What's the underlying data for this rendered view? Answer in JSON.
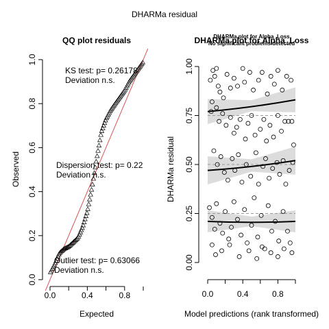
{
  "figure": {
    "main_title": "DHARMa residual"
  },
  "chart_data": [
    {
      "type": "scatter",
      "subtype": "qq",
      "title": "QQ plot residuals",
      "xlabel": "Expected",
      "ylabel": "Observed",
      "xlim": [
        0,
        1
      ],
      "ylim": [
        0,
        1
      ],
      "xticks": [
        "0.0",
        "0.4",
        "0.8"
      ],
      "xtick_values": [
        0,
        0.4,
        0.8
      ],
      "yticks": [
        "0.0",
        "0.2",
        "0.4",
        "0.6",
        "0.8",
        "1.0"
      ],
      "ytick_values": [
        0,
        0.2,
        0.4,
        0.6,
        0.8,
        1.0
      ],
      "reference_line": {
        "from": [
          0,
          0
        ],
        "to": [
          1,
          1
        ],
        "color": "#d9534f"
      },
      "marker": "triangle-open",
      "n_points": 100,
      "qq_curve": [
        [
          0.0,
          0.03
        ],
        [
          0.05,
          0.07
        ],
        [
          0.1,
          0.12
        ],
        [
          0.15,
          0.14
        ],
        [
          0.2,
          0.15
        ],
        [
          0.25,
          0.17
        ],
        [
          0.3,
          0.19
        ],
        [
          0.35,
          0.24
        ],
        [
          0.4,
          0.31
        ],
        [
          0.45,
          0.42
        ],
        [
          0.5,
          0.55
        ],
        [
          0.55,
          0.67
        ],
        [
          0.6,
          0.73
        ],
        [
          0.65,
          0.77
        ],
        [
          0.7,
          0.8
        ],
        [
          0.75,
          0.83
        ],
        [
          0.8,
          0.86
        ],
        [
          0.85,
          0.9
        ],
        [
          0.9,
          0.93
        ],
        [
          0.95,
          0.96
        ],
        [
          1.0,
          0.99
        ]
      ],
      "annotations": [
        {
          "line1": "KS test: p= 0.26178",
          "line2": "Deviation  n.s."
        },
        {
          "line1": "Dispersion test: p= 0.22",
          "line2": "Deviation  n.s."
        },
        {
          "line1": "Outlier test: p= 0.63066",
          "line2": "Deviation  n.s."
        }
      ]
    },
    {
      "type": "scatter",
      "subtype": "residual-vs-predicted",
      "title": "DHARMa plot for Alpha_Loss",
      "subtitle_lines": [
        "DHARMa plot for Alpha_Loss",
        "No significant problems detected"
      ],
      "xlabel": "Model predictions (rank transformed)",
      "ylabel": "DHARMa residual",
      "xlim": [
        0,
        1
      ],
      "ylim": [
        0,
        1
      ],
      "xticks": [
        "0.0",
        "0.4",
        "0.8"
      ],
      "xtick_values": [
        0,
        0.4,
        0.8
      ],
      "yticks": [
        "0.00",
        "0.25",
        "0.50",
        "0.75",
        "1.00"
      ],
      "ytick_values": [
        0,
        0.25,
        0.5,
        0.75,
        1.0
      ],
      "reference_lines_y": [
        0.25,
        0.5,
        0.75
      ],
      "marker": "circle-open",
      "quantile_fits": [
        {
          "quantile": 0.25,
          "start": 0.21,
          "end": 0.21
        },
        {
          "quantile": 0.5,
          "start": 0.47,
          "end": 0.52
        },
        {
          "quantile": 0.75,
          "start": 0.77,
          "end": 0.83
        }
      ],
      "points": [
        [
          0.03,
          0.93
        ],
        [
          0.05,
          0.82
        ],
        [
          0.06,
          0.98
        ],
        [
          0.08,
          0.95
        ],
        [
          0.1,
          0.99
        ],
        [
          0.12,
          0.9
        ],
        [
          0.14,
          0.87
        ],
        [
          0.18,
          0.84
        ],
        [
          0.22,
          0.96
        ],
        [
          0.26,
          0.89
        ],
        [
          0.3,
          0.94
        ],
        [
          0.34,
          0.9
        ],
        [
          0.4,
          0.99
        ],
        [
          0.42,
          0.92
        ],
        [
          0.48,
          0.97
        ],
        [
          0.52,
          0.88
        ],
        [
          0.58,
          0.93
        ],
        [
          0.62,
          0.97
        ],
        [
          0.68,
          0.86
        ],
        [
          0.72,
          0.95
        ],
        [
          0.76,
          0.91
        ],
        [
          0.8,
          0.98
        ],
        [
          0.85,
          0.88
        ],
        [
          0.9,
          0.95
        ],
        [
          0.95,
          0.93
        ],
        [
          0.04,
          0.77
        ],
        [
          0.1,
          0.79
        ],
        [
          0.13,
          0.72
        ],
        [
          0.17,
          0.76
        ],
        [
          0.21,
          0.7
        ],
        [
          0.26,
          0.74
        ],
        [
          0.3,
          0.66
        ],
        [
          0.33,
          0.69
        ],
        [
          0.37,
          0.73
        ],
        [
          0.43,
          0.63
        ],
        [
          0.46,
          0.71
        ],
        [
          0.5,
          0.75
        ],
        [
          0.54,
          0.65
        ],
        [
          0.6,
          0.68
        ],
        [
          0.64,
          0.73
        ],
        [
          0.67,
          0.62
        ],
        [
          0.71,
          0.7
        ],
        [
          0.75,
          0.64
        ],
        [
          0.8,
          0.75
        ],
        [
          0.84,
          0.67
        ],
        [
          0.88,
          0.72
        ],
        [
          0.92,
          0.72
        ],
        [
          0.96,
          0.72
        ],
        [
          0.98,
          0.6
        ],
        [
          0.07,
          0.57
        ],
        [
          0.11,
          0.5
        ],
        [
          0.15,
          0.54
        ],
        [
          0.19,
          0.46
        ],
        [
          0.23,
          0.42
        ],
        [
          0.28,
          0.53
        ],
        [
          0.31,
          0.47
        ],
        [
          0.35,
          0.55
        ],
        [
          0.39,
          0.41
        ],
        [
          0.44,
          0.5
        ],
        [
          0.49,
          0.44
        ],
        [
          0.55,
          0.56
        ],
        [
          0.58,
          0.4
        ],
        [
          0.63,
          0.49
        ],
        [
          0.66,
          0.53
        ],
        [
          0.7,
          0.43
        ],
        [
          0.74,
          0.48
        ],
        [
          0.79,
          0.51
        ],
        [
          0.82,
          0.45
        ],
        [
          0.86,
          0.52
        ],
        [
          0.89,
          0.4
        ],
        [
          0.93,
          0.47
        ],
        [
          0.97,
          0.51
        ],
        [
          0.02,
          0.28
        ],
        [
          0.05,
          0.23
        ],
        [
          0.08,
          0.17
        ],
        [
          0.1,
          0.3
        ],
        [
          0.14,
          0.2
        ],
        [
          0.17,
          0.15
        ],
        [
          0.2,
          0.26
        ],
        [
          0.24,
          0.12
        ],
        [
          0.27,
          0.18
        ],
        [
          0.3,
          0.31
        ],
        [
          0.34,
          0.22
        ],
        [
          0.38,
          0.14
        ],
        [
          0.42,
          0.27
        ],
        [
          0.45,
          0.1
        ],
        [
          0.5,
          0.19
        ],
        [
          0.53,
          0.33
        ],
        [
          0.57,
          0.13
        ],
        [
          0.61,
          0.24
        ],
        [
          0.65,
          0.07
        ],
        [
          0.69,
          0.29
        ],
        [
          0.73,
          0.16
        ],
        [
          0.77,
          0.21
        ],
        [
          0.81,
          0.11
        ],
        [
          0.86,
          0.26
        ],
        [
          0.91,
          0.16
        ],
        [
          0.96,
          0.05
        ],
        [
          0.05,
          0.09
        ],
        [
          0.09,
          0.04
        ],
        [
          0.16,
          0.06
        ],
        [
          0.25,
          0.09
        ],
        [
          0.36,
          0.03
        ],
        [
          0.47,
          0.06
        ],
        [
          0.56,
          0.02
        ],
        [
          0.62,
          0.08
        ],
        [
          0.72,
          0.05
        ],
        [
          0.8,
          0.03
        ],
        [
          0.87,
          0.07
        ],
        [
          0.94,
          0.1
        ]
      ]
    }
  ]
}
